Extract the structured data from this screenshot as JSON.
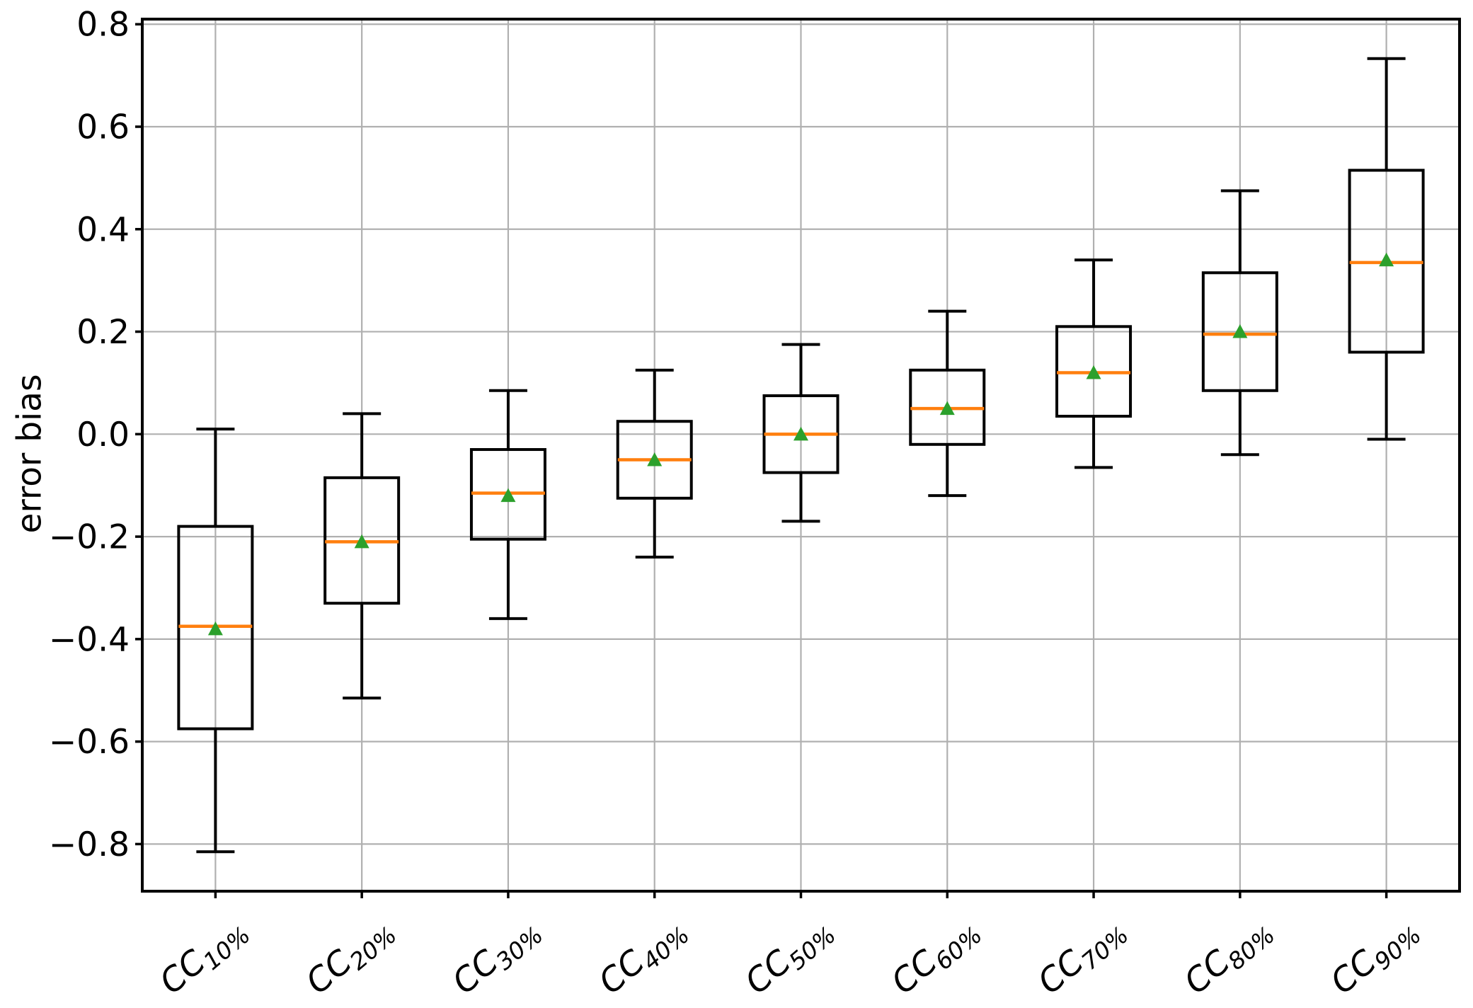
{
  "figure": {
    "background": "#ffffff"
  },
  "chart_data": {
    "type": "boxplot",
    "title": "",
    "xlabel": "",
    "ylabel": "error bias",
    "grid": true,
    "legend": "none",
    "ylim": [
      -0.892,
      0.81
    ],
    "yticks": [
      0.8,
      0.6,
      0.4,
      0.2,
      0.0,
      -0.2,
      -0.4,
      -0.6,
      -0.8
    ],
    "ytick_labels": [
      "0.8",
      "0.6",
      "0.4",
      "0.2",
      "0.0",
      "−0.2",
      "−0.4",
      "−0.6",
      "−0.8"
    ],
    "x_rotation_deg": 40,
    "colors": {
      "box_edge": "#000000",
      "whisker": "#000000",
      "median": "#ff7f0e",
      "mean_marker": "#2ca02c",
      "grid": "#b0b0b0",
      "axis": "#000000",
      "background": "#ffffff"
    },
    "mean_marker_shape": "triangle-up",
    "boxes": [
      {
        "label": "CC 10%",
        "label_base": "CC",
        "label_sub": "10%",
        "whisker_low": -0.815,
        "q1": -0.575,
        "median": -0.375,
        "mean": -0.38,
        "q3": -0.18,
        "whisker_high": 0.01
      },
      {
        "label": "CC 20%",
        "label_base": "CC",
        "label_sub": "20%",
        "whisker_low": -0.515,
        "q1": -0.33,
        "median": -0.21,
        "mean": -0.21,
        "q3": -0.085,
        "whisker_high": 0.04
      },
      {
        "label": "CC 30%",
        "label_base": "CC",
        "label_sub": "30%",
        "whisker_low": -0.36,
        "q1": -0.205,
        "median": -0.115,
        "mean": -0.12,
        "q3": -0.03,
        "whisker_high": 0.085
      },
      {
        "label": "CC 40%",
        "label_base": "CC",
        "label_sub": "40%",
        "whisker_low": -0.24,
        "q1": -0.125,
        "median": -0.05,
        "mean": -0.05,
        "q3": 0.025,
        "whisker_high": 0.125
      },
      {
        "label": "CC 50%",
        "label_base": "CC",
        "label_sub": "50%",
        "whisker_low": -0.17,
        "q1": -0.075,
        "median": 0.0,
        "mean": 0.0,
        "q3": 0.075,
        "whisker_high": 0.175
      },
      {
        "label": "CC 60%",
        "label_base": "CC",
        "label_sub": "60%",
        "whisker_low": -0.12,
        "q1": -0.02,
        "median": 0.05,
        "mean": 0.05,
        "q3": 0.125,
        "whisker_high": 0.24
      },
      {
        "label": "CC 70%",
        "label_base": "CC",
        "label_sub": "70%",
        "whisker_low": -0.065,
        "q1": 0.035,
        "median": 0.12,
        "mean": 0.12,
        "q3": 0.21,
        "whisker_high": 0.34
      },
      {
        "label": "CC 80%",
        "label_base": "CC",
        "label_sub": "80%",
        "whisker_low": -0.04,
        "q1": 0.085,
        "median": 0.195,
        "mean": 0.2,
        "q3": 0.315,
        "whisker_high": 0.475
      },
      {
        "label": "CC 90%",
        "label_base": "CC",
        "label_sub": "90%",
        "whisker_low": -0.01,
        "q1": 0.16,
        "median": 0.335,
        "mean": 0.34,
        "q3": 0.515,
        "whisker_high": 0.733
      }
    ]
  }
}
